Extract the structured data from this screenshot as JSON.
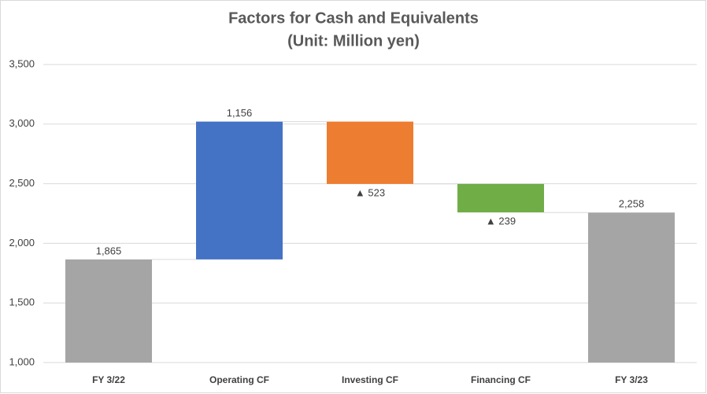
{
  "chart_data": {
    "type": "waterfall",
    "title": "Factors for Cash and Equivalents",
    "subtitle": "(Unit: Million yen)",
    "categories": [
      "FY 3/22",
      "Operating CF",
      "Investing CF",
      "Financing CF",
      "FY 3/23"
    ],
    "values": [
      1865,
      1156,
      -523,
      -239,
      2258
    ],
    "value_labels": [
      "1,865",
      "1,156",
      "▲ 523",
      "▲ 239",
      "2,258"
    ],
    "colors": [
      "#a5a5a5",
      "#4472c4",
      "#ed7d31",
      "#70ad47",
      "#a5a5a5"
    ],
    "ylim": [
      1000,
      3500
    ],
    "yticks": [
      {
        "value": 1000,
        "label": "1,000"
      },
      {
        "value": 1500,
        "label": "1,500"
      },
      {
        "value": 2000,
        "label": "2,000"
      },
      {
        "value": 2500,
        "label": "2,500"
      },
      {
        "value": 3000,
        "label": "3,000"
      },
      {
        "value": 3500,
        "label": "3,500"
      }
    ],
    "grid": true
  }
}
